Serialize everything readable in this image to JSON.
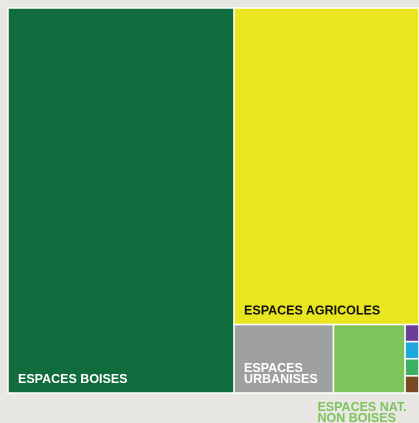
{
  "chart_data": {
    "type": "treemap",
    "categories": [
      [
        "ESPACES BOISES"
      ],
      [
        "ESPACES AGRICOLES"
      ],
      [
        "ESPACES",
        "URBANISES"
      ],
      [
        "ESPACES NAT.",
        "NON BOISES"
      ],
      null,
      null,
      null,
      null
    ],
    "values": [
      55,
      37,
      4.3,
      3.1,
      0.15,
      0.15,
      0.15,
      0.15
    ],
    "colors": [
      "#106b3d",
      "#e9e51f",
      "#9d9fa1",
      "#7ec45c",
      "#6b3f98",
      "#1ea8de",
      "#3db163",
      "#7a4a22"
    ],
    "label_colors": [
      "#ffffff",
      "#111111",
      "#ffffff",
      "#7ec45c"
    ]
  }
}
